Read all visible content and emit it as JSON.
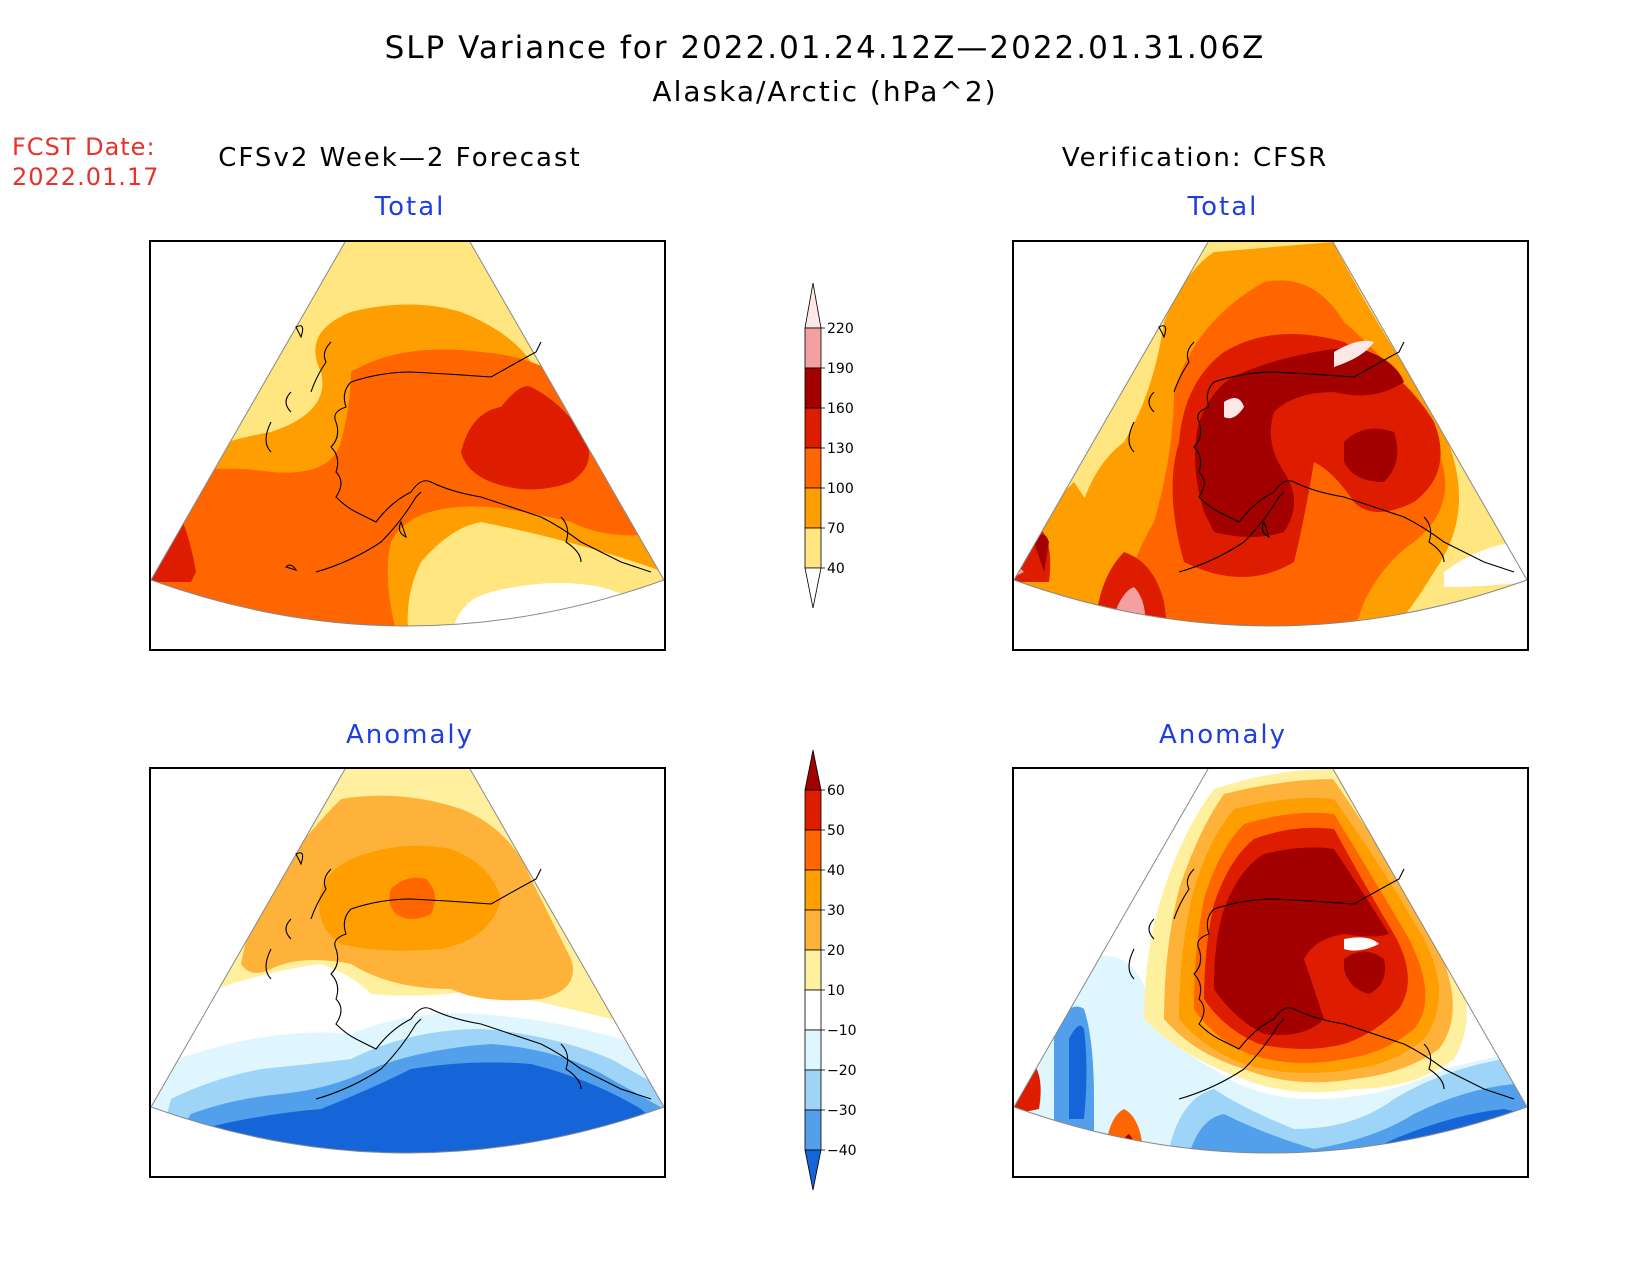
{
  "header": {
    "title": "SLP Variance for 2022.01.24.12Z—2022.01.31.06Z",
    "subtitle": "Alaska/Arctic (hPa^2)"
  },
  "fcst": {
    "line1": "FCST Date:",
    "line2": "2022.01.17"
  },
  "columns": {
    "left": "CFSv2 Week—2 Forecast",
    "right": "Verification: CFSR"
  },
  "panels": {
    "fcst_total": "Total",
    "verif_total": "Total",
    "fcst_anomaly": "Anomaly",
    "verif_anomaly": "Anomaly"
  },
  "colorbars": {
    "total": {
      "labels": [
        "220",
        "190",
        "160",
        "130",
        "100",
        "70",
        "40"
      ],
      "colors": [
        "#fde8e8",
        "#f4a0a0",
        "#a30000",
        "#dd1c00",
        "#ff6600",
        "#ff9e00",
        "#ffe680",
        "#ffffff"
      ]
    },
    "anomaly": {
      "labels": [
        "60",
        "50",
        "40",
        "30",
        "20",
        "10",
        "−10",
        "−20",
        "−30",
        "−40"
      ],
      "colors": [
        "#a30000",
        "#dd1c00",
        "#ff6600",
        "#ff9e00",
        "#ffb23a",
        "#fff0a0",
        "#ffffff",
        "#dff6ff",
        "#9ed4f8",
        "#52a0ec",
        "#1565d8"
      ]
    }
  },
  "palette": {
    "white": "#ffffff",
    "lightyellow": "#ffe680",
    "orange": "#ff9e00",
    "darkorange": "#ff6600",
    "red": "#dd1c00",
    "darkred": "#a30000",
    "pink": "#f4a0a0",
    "lightpink": "#fde8e8",
    "paleblue": "#dff6ff",
    "lightblue": "#9ed4f8",
    "midblue": "#52a0ec",
    "blue": "#1565d8",
    "paleyellow": "#fff0a0",
    "lightorange": "#ffb23a"
  }
}
